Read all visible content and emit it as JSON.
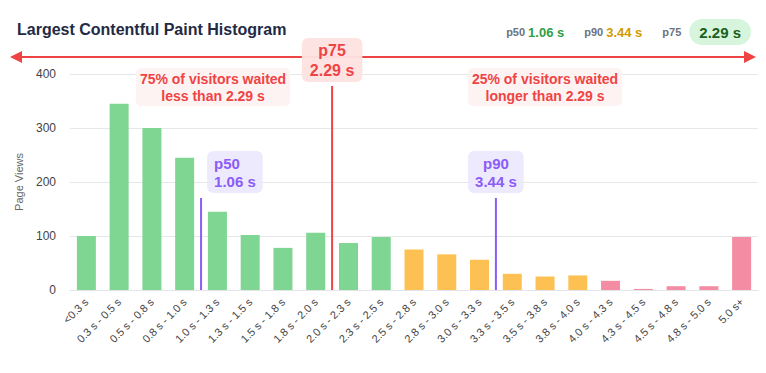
{
  "chart_data": {
    "type": "bar",
    "title": "Largest Contentful Paint Histogram",
    "y_label": "Page Views",
    "categories": [
      "<0.3 s",
      "0.3 s - 0.5 s",
      "0.5 s - 0.8 s",
      "0.8 s - 1.0 s",
      "1.0 s - 1.3 s",
      "1.3 s - 1.5 s",
      "1.5 s - 1.8 s",
      "1.8 s - 2.0 s",
      "2.0 s - 2.3 s",
      "2.3 s - 2.5 s",
      "2.5 s - 2.8 s",
      "2.8 s - 3.0 s",
      "3.0 s - 3.3 s",
      "3.3 s - 3.5 s",
      "3.5 s - 3.8 s",
      "3.8 s - 4.0 s",
      "4.0 s - 4.3 s",
      "4.3 s - 4.5 s",
      "4.5 s - 4.8 s",
      "4.8 s - 5.0 s",
      "5.0 s+"
    ],
    "values": [
      100,
      345,
      300,
      245,
      145,
      102,
      78,
      106,
      87,
      98,
      75,
      66,
      56,
      30,
      25,
      27,
      17,
      2,
      7,
      7,
      98
    ],
    "colors": [
      "#7ed692",
      "#7ed692",
      "#7ed692",
      "#7ed692",
      "#7ed692",
      "#7ed692",
      "#7ed692",
      "#7ed692",
      "#7ed692",
      "#7ed692",
      "#fdc153",
      "#fdc153",
      "#fdc153",
      "#fdc153",
      "#fdc153",
      "#fdc153",
      "#f48ca3",
      "#f48ca3",
      "#f48ca3",
      "#f48ca3",
      "#f48ca3"
    ],
    "ylim": [
      0,
      400
    ],
    "yticks": [
      0,
      100,
      200,
      300,
      400
    ],
    "grid": true,
    "annotations": [
      {
        "label": "p50",
        "text": "1.06 s",
        "bin": "1.0 s - 1.3 s",
        "color": "#8b5cf6"
      },
      {
        "label": "p90",
        "text": "3.44 s",
        "bin": "3.3 s - 3.5 s",
        "color": "#8b5cf6"
      },
      {
        "label": "p75",
        "text": "2.29 s",
        "bin": "2.0 s - 2.3 s",
        "color": "#ef4444",
        "left_text": "75% of visitors waited\nless than 2.29 s",
        "right_text": "25% of visitors waited\nlonger than 2.29 s"
      }
    ]
  }
}
